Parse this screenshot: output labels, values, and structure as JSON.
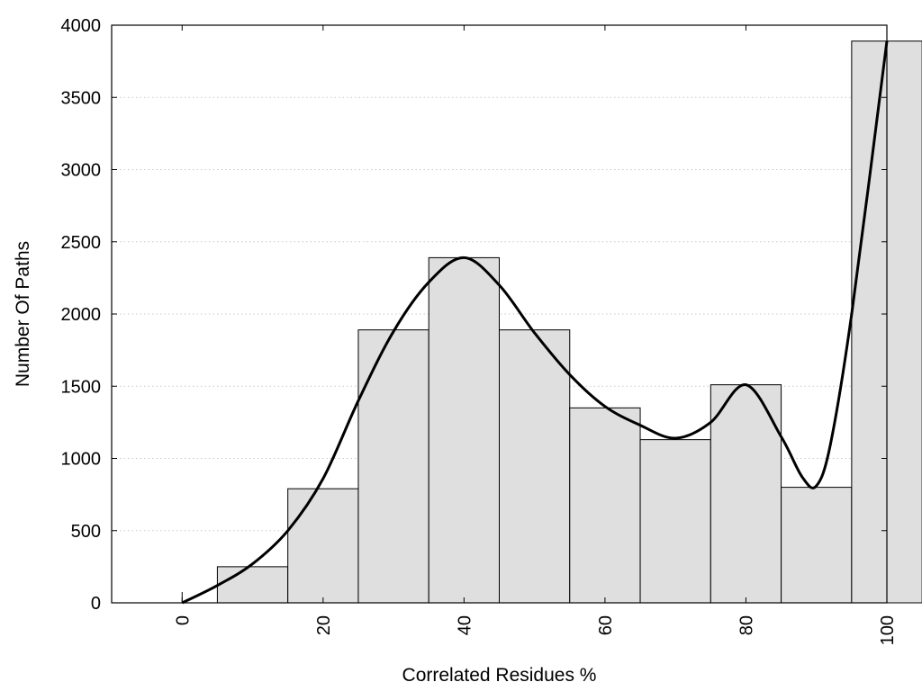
{
  "chart_data": {
    "type": "bar",
    "xlabel": "Correlated Residues %",
    "ylabel": "Number Of Paths",
    "xlim": [
      -10,
      100
    ],
    "ylim": [
      0,
      4000
    ],
    "x_ticks": [
      0,
      20,
      40,
      60,
      80,
      100
    ],
    "y_ticks": [
      0,
      500,
      1000,
      1500,
      2000,
      2500,
      3000,
      3500,
      4000
    ],
    "grid": "horizontal dotted",
    "bin_width": 10,
    "categories": [
      0,
      10,
      20,
      30,
      40,
      50,
      60,
      70,
      80,
      90,
      100
    ],
    "values": [
      0,
      250,
      790,
      1890,
      2390,
      1890,
      1350,
      1130,
      1510,
      800,
      3890
    ],
    "curve": {
      "x": [
        0,
        5,
        10,
        15,
        20,
        25,
        30,
        35,
        40,
        45,
        50,
        55,
        60,
        65,
        70,
        75,
        80,
        85,
        88,
        90,
        92,
        95,
        100
      ],
      "y": [
        0,
        120,
        270,
        500,
        860,
        1400,
        1880,
        2220,
        2390,
        2200,
        1870,
        1580,
        1360,
        1230,
        1140,
        1250,
        1510,
        1150,
        870,
        810,
        1100,
        2000,
        3890
      ]
    },
    "colors": {
      "bar_fill": "#dfdfdf",
      "bar_stroke": "#000000",
      "curve": "#000000",
      "grid": "#c8c8c8"
    }
  }
}
